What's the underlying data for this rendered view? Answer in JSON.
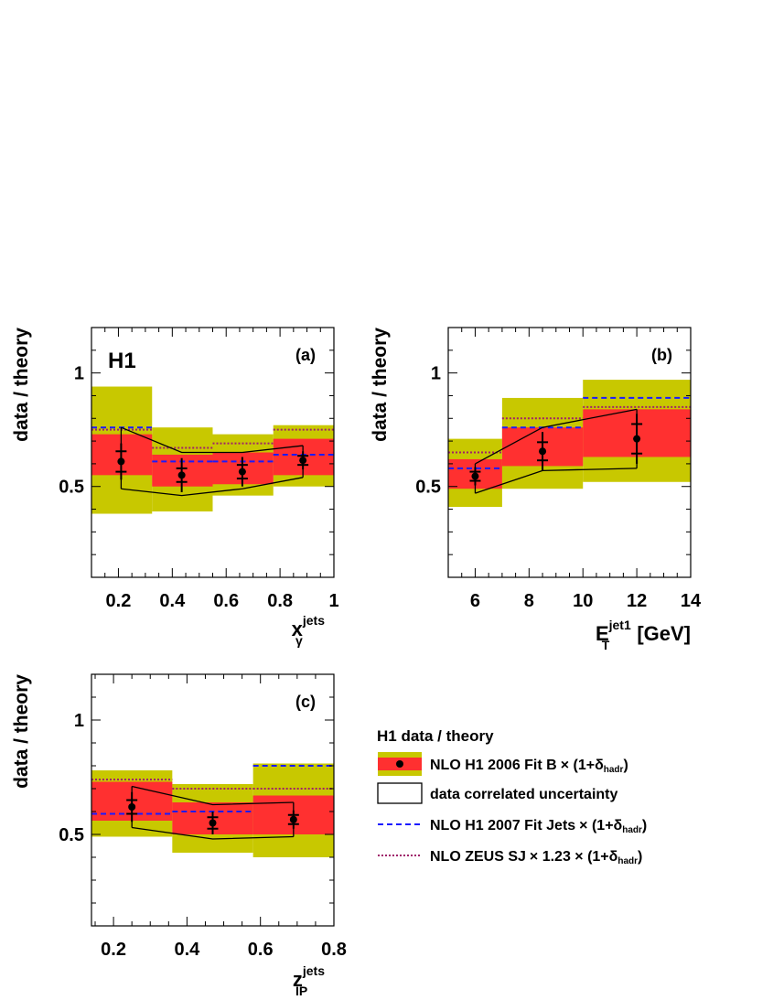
{
  "figure_label": "H1",
  "legend": {
    "title": "H1 data / theory",
    "entries": [
      {
        "name": "NLO H1 2006 Fit B",
        "suffix": "× (1+δ",
        "sub": "hadr",
        "close": ")"
      },
      {
        "name": "data correlated uncertainty"
      },
      {
        "name": "NLO H1 2007 Fit Jets",
        "suffix": "× (1+δ",
        "sub": "hadr",
        "close": ")"
      },
      {
        "name": "NLO ZEUS  SJ",
        "suffix": "× 1.23 × (1+δ",
        "sub": "hadr",
        "close": ")"
      }
    ]
  },
  "colors": {
    "outer_band": "#c8c800",
    "inner_band": "#ff3030",
    "fitjets": "#1a1aff",
    "zeus": "#a0206a",
    "data": "#000000"
  },
  "chart_data": [
    {
      "type": "bar",
      "panel": "(a)",
      "title": "",
      "ylabel": "data / theory",
      "xlabel": "x",
      "xlabel_sup": "jets",
      "xlabel_sub": "γ",
      "xlim": [
        0.1,
        1.0
      ],
      "ylim": [
        0.1,
        1.2
      ],
      "xticks": [
        0.2,
        0.4,
        0.6,
        0.8,
        1.0
      ],
      "xtick_labels": [
        "0.2",
        "0.4",
        "0.6",
        "0.8",
        "1"
      ],
      "yticks": [
        0.5,
        1.0
      ],
      "ytick_labels": [
        "0.5",
        "1"
      ],
      "bins": [
        [
          0.1,
          0.325
        ],
        [
          0.325,
          0.55
        ],
        [
          0.55,
          0.775
        ],
        [
          0.775,
          1.0
        ]
      ],
      "outer_band": [
        [
          0.38,
          0.94
        ],
        [
          0.39,
          0.76
        ],
        [
          0.46,
          0.73
        ],
        [
          0.5,
          0.77
        ]
      ],
      "inner_band": [
        [
          0.55,
          0.73
        ],
        [
          0.5,
          0.64
        ],
        [
          0.51,
          0.65
        ],
        [
          0.55,
          0.71
        ]
      ],
      "fitjets": [
        0.76,
        0.61,
        0.61,
        0.64
      ],
      "zeus": [
        0.75,
        0.67,
        0.69,
        0.75
      ],
      "points": [
        {
          "x": 0.21,
          "y": 0.61,
          "stat": 0.045,
          "tot": 0.08
        },
        {
          "x": 0.435,
          "y": 0.55,
          "stat": 0.03,
          "tot": 0.075
        },
        {
          "x": 0.66,
          "y": 0.565,
          "stat": 0.03,
          "tot": 0.065
        },
        {
          "x": 0.885,
          "y": 0.615,
          "stat": 0.02,
          "tot": 0.04
        }
      ],
      "corr_upper": [
        0.76,
        0.65,
        0.65,
        0.68
      ],
      "corr_lower": [
        0.49,
        0.46,
        0.49,
        0.54
      ]
    },
    {
      "type": "bar",
      "panel": "(b)",
      "title": "",
      "ylabel": "data / theory",
      "xlabel": "E",
      "xlabel_sup": "jet1",
      "xlabel_sub": "T",
      "xlabel_suffix": "[GeV]",
      "xlim": [
        5,
        14
      ],
      "ylim": [
        0.1,
        1.2
      ],
      "xticks": [
        6,
        8,
        10,
        12,
        14
      ],
      "xtick_labels": [
        "6",
        "8",
        "10",
        "12",
        "14"
      ],
      "yticks": [
        0.5,
        1.0
      ],
      "ytick_labels": [
        "0.5",
        "1"
      ],
      "bins": [
        [
          5,
          7
        ],
        [
          7,
          10
        ],
        [
          10,
          14
        ]
      ],
      "outer_band": [
        [
          0.41,
          0.71
        ],
        [
          0.49,
          0.89
        ],
        [
          0.52,
          0.97
        ]
      ],
      "inner_band": [
        [
          0.49,
          0.62
        ],
        [
          0.59,
          0.76
        ],
        [
          0.63,
          0.84
        ]
      ],
      "fitjets": [
        0.58,
        0.76,
        0.89
      ],
      "zeus": [
        0.65,
        0.8,
        0.85
      ],
      "points": [
        {
          "x": 6.0,
          "y": 0.545,
          "stat": 0.02,
          "tot": 0.04
        },
        {
          "x": 8.5,
          "y": 0.655,
          "stat": 0.04,
          "tot": 0.085
        },
        {
          "x": 12.0,
          "y": 0.71,
          "stat": 0.065,
          "tot": 0.11
        }
      ],
      "corr_upper": [
        0.6,
        0.76,
        0.84
      ],
      "corr_lower": [
        0.47,
        0.57,
        0.58
      ]
    },
    {
      "type": "bar",
      "panel": "(c)",
      "title": "",
      "ylabel": "data / theory",
      "xlabel": "z",
      "xlabel_sup": "jets",
      "xlabel_sub": "IP",
      "xlim": [
        0.14,
        0.8
      ],
      "ylim": [
        0.1,
        1.2
      ],
      "xticks": [
        0.2,
        0.4,
        0.6,
        0.8
      ],
      "xtick_labels": [
        "0.2",
        "0.4",
        "0.6",
        "0.8"
      ],
      "yticks": [
        0.5,
        1.0
      ],
      "ytick_labels": [
        "0.5",
        "1"
      ],
      "bins": [
        [
          0.14,
          0.36
        ],
        [
          0.36,
          0.58
        ],
        [
          0.58,
          0.8
        ]
      ],
      "outer_band": [
        [
          0.49,
          0.78
        ],
        [
          0.42,
          0.72
        ],
        [
          0.4,
          0.81
        ]
      ],
      "inner_band": [
        [
          0.56,
          0.73
        ],
        [
          0.5,
          0.64
        ],
        [
          0.5,
          0.67
        ]
      ],
      "fitjets": [
        0.59,
        0.6,
        0.8
      ],
      "zeus": [
        0.74,
        0.7,
        0.7
      ],
      "points": [
        {
          "x": 0.25,
          "y": 0.62,
          "stat": 0.03,
          "tot": 0.065
        },
        {
          "x": 0.47,
          "y": 0.55,
          "stat": 0.025,
          "tot": 0.05
        },
        {
          "x": 0.69,
          "y": 0.565,
          "stat": 0.02,
          "tot": 0.04
        }
      ],
      "corr_upper": [
        0.71,
        0.63,
        0.64
      ],
      "corr_lower": [
        0.53,
        0.48,
        0.49
      ]
    }
  ]
}
